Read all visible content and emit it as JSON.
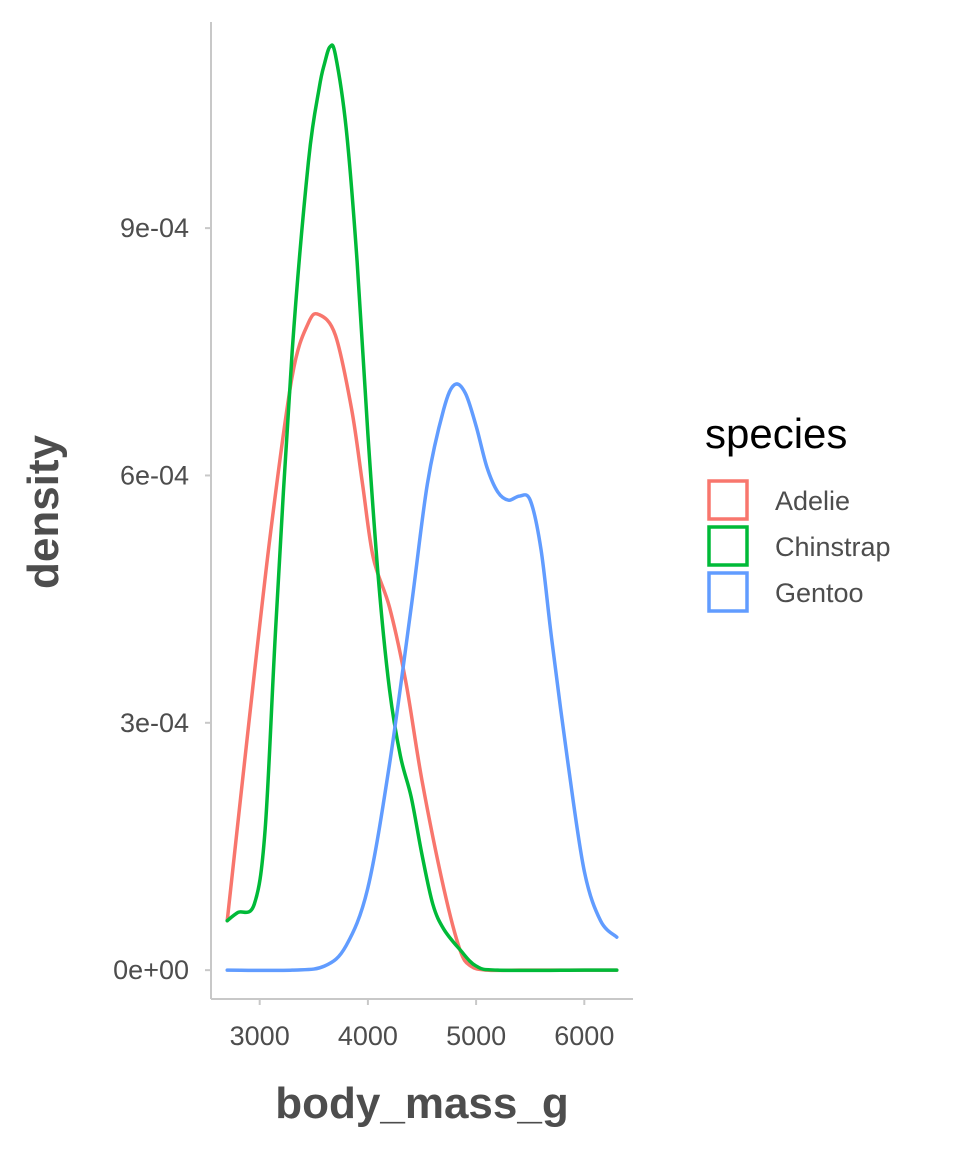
{
  "chart_data": {
    "type": "line",
    "xlabel": "body_mass_g",
    "ylabel": "density",
    "xlim": [
      2550,
      6450
    ],
    "ylim": [
      -3.5e-05,
      0.00115
    ],
    "x_ticks": [
      3000,
      4000,
      5000,
      6000
    ],
    "x_tick_labels": [
      "3000",
      "4000",
      "5000",
      "6000"
    ],
    "y_ticks": [
      0,
      0.0003,
      0.0006,
      0.0009
    ],
    "y_tick_labels": [
      "0e+00",
      "3e-04",
      "6e-04",
      "9e-04"
    ],
    "grid": false,
    "legend": {
      "title": "species",
      "placement": "right"
    },
    "series": [
      {
        "name": "Adelie",
        "color": "#F8766D",
        "points": [
          [
            2700,
            6e-05
          ],
          [
            2900,
            0.0003
          ],
          [
            3100,
            0.00053
          ],
          [
            3300,
            0.00072
          ],
          [
            3450,
            0.000785
          ],
          [
            3550,
            0.000795
          ],
          [
            3700,
            0.00077
          ],
          [
            3850,
            0.00068
          ],
          [
            3950,
            0.00059
          ],
          [
            4050,
            0.0005
          ],
          [
            4200,
            0.00044
          ],
          [
            4350,
            0.00035
          ],
          [
            4500,
            0.00023
          ],
          [
            4700,
            0.0001
          ],
          [
            4850,
            2.5e-05
          ],
          [
            4950,
            5e-06
          ],
          [
            5100,
            0.0
          ],
          [
            5400,
            0.0
          ],
          [
            6000,
            0.0
          ],
          [
            6300,
            0.0
          ]
        ]
      },
      {
        "name": "Chinstrap",
        "color": "#00BA38",
        "points": [
          [
            2700,
            6e-05
          ],
          [
            2800,
            7e-05
          ],
          [
            2950,
            8e-05
          ],
          [
            3050,
            0.00017
          ],
          [
            3150,
            0.00042
          ],
          [
            3300,
            0.00075
          ],
          [
            3450,
            0.00098
          ],
          [
            3550,
            0.00107
          ],
          [
            3600,
            0.0011
          ],
          [
            3650,
            0.00112
          ],
          [
            3700,
            0.00111
          ],
          [
            3800,
            0.00102
          ],
          [
            3900,
            0.00086
          ],
          [
            4000,
            0.00065
          ],
          [
            4100,
            0.00047
          ],
          [
            4200,
            0.00034
          ],
          [
            4300,
            0.00026
          ],
          [
            4400,
            0.00021
          ],
          [
            4500,
            0.00014
          ],
          [
            4600,
            8e-05
          ],
          [
            4700,
            5e-05
          ],
          [
            4850,
            2.5e-05
          ],
          [
            5000,
            5e-06
          ],
          [
            5200,
            0.0
          ],
          [
            6000,
            0.0
          ],
          [
            6300,
            0.0
          ]
        ]
      },
      {
        "name": "Gentoo",
        "color": "#619CFF",
        "points": [
          [
            2700,
            0.0
          ],
          [
            3300,
            0.0
          ],
          [
            3600,
            5e-06
          ],
          [
            3800,
            3e-05
          ],
          [
            4000,
            0.0001
          ],
          [
            4200,
            0.00025
          ],
          [
            4400,
            0.00044
          ],
          [
            4550,
            0.00059
          ],
          [
            4700,
            0.00068
          ],
          [
            4800,
            0.00071
          ],
          [
            4900,
            0.0007
          ],
          [
            5000,
            0.00066
          ],
          [
            5100,
            0.00061
          ],
          [
            5200,
            0.00058
          ],
          [
            5300,
            0.00057
          ],
          [
            5400,
            0.000575
          ],
          [
            5500,
            0.00057
          ],
          [
            5600,
            0.00051
          ],
          [
            5700,
            0.0004
          ],
          [
            5850,
            0.00025
          ],
          [
            6000,
            0.00012
          ],
          [
            6150,
            6e-05
          ],
          [
            6300,
            4e-05
          ]
        ]
      }
    ]
  }
}
